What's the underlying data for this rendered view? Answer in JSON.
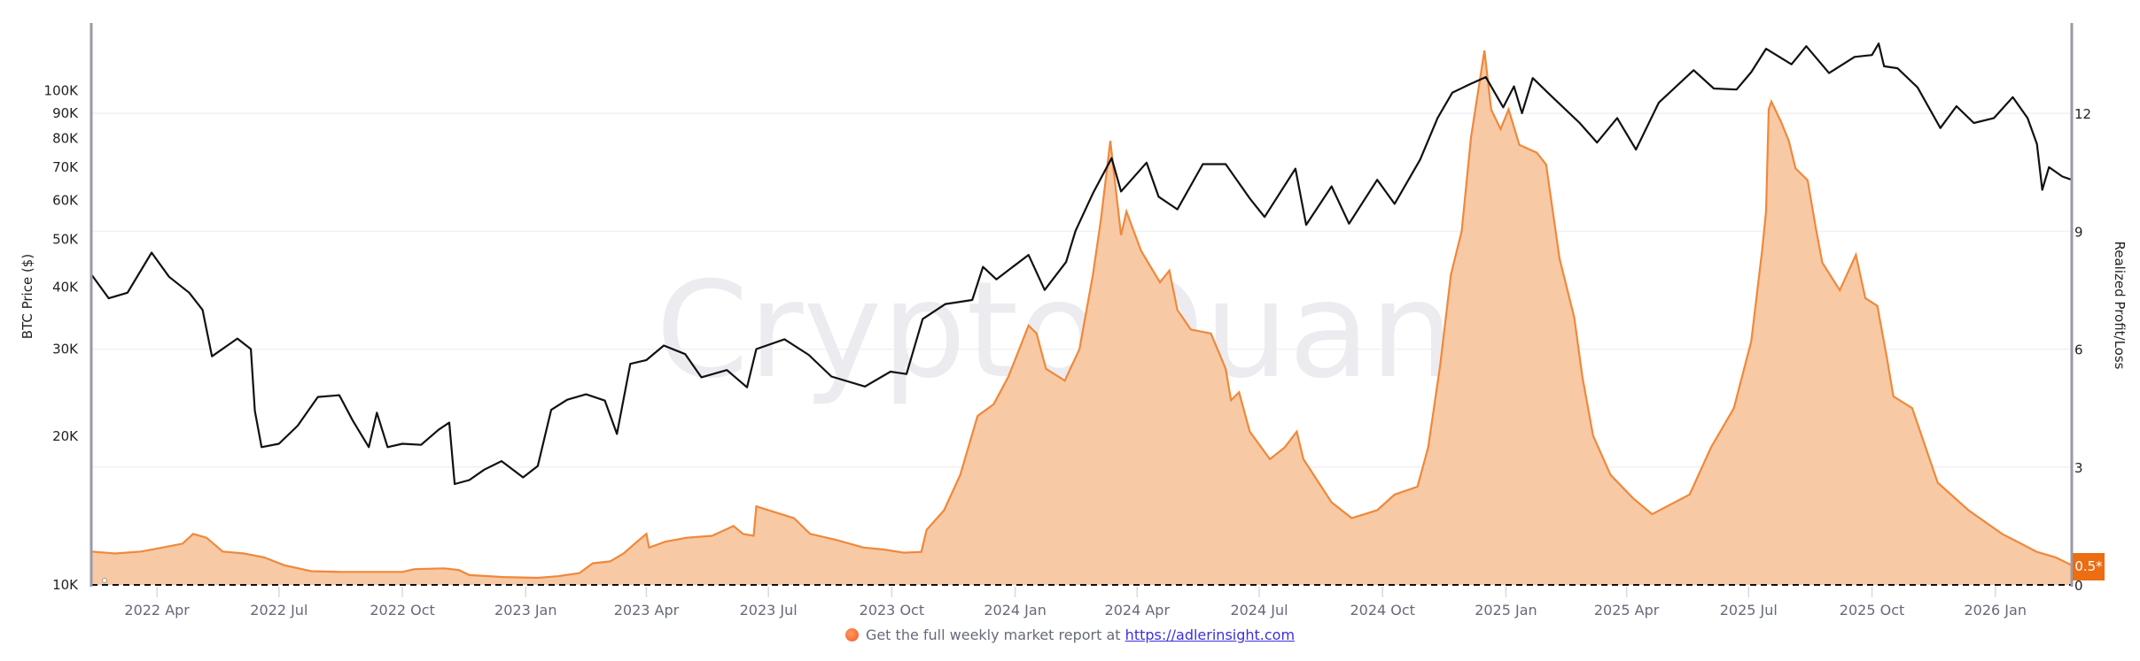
{
  "chart_data": {
    "type": "line",
    "watermark": "CryptoQuant",
    "y_left": {
      "label": "BTC Price ($)",
      "scale": "log",
      "range": [
        10000,
        137000
      ],
      "ticks": [
        10000,
        20000,
        30000,
        40000,
        50000,
        60000,
        70000,
        80000,
        90000,
        100000
      ],
      "tick_labels": [
        "10K",
        "20K",
        "30K",
        "40K",
        "50K",
        "60K",
        "70K",
        "80K",
        "90K",
        "100K"
      ]
    },
    "y_right": {
      "label": "Realized Profit/Loss",
      "scale": "linear",
      "range": [
        0,
        14.3
      ],
      "ticks": [
        0,
        3,
        6,
        9,
        12
      ],
      "tick_labels": [
        "0",
        "3",
        "6",
        "9",
        "12"
      ]
    },
    "x": {
      "range": [
        "2022-02-11",
        "2026-02-27"
      ],
      "ticks": [
        "2022-04-01",
        "2022-07-01",
        "2022-10-01",
        "2023-01-01",
        "2023-04-01",
        "2023-07-01",
        "2023-10-01",
        "2024-01-01",
        "2024-04-01",
        "2024-07-01",
        "2024-10-01",
        "2025-01-01",
        "2025-04-01",
        "2025-07-01",
        "2025-10-01",
        "2026-01-01"
      ],
      "tick_labels": [
        "2022 Apr",
        "2022 Jul",
        "2022 Oct",
        "2023 Jan",
        "2023 Apr",
        "2023 Jul",
        "2023 Oct",
        "2024 Jan",
        "2024 Apr",
        "2024 Jul",
        "2024 Oct",
        "2025 Jan",
        "2025 Apr",
        "2025 Jul",
        "2025 Oct",
        "2026 Jan"
      ]
    },
    "grid": true,
    "reference_line": {
      "axis": "right",
      "value": 0,
      "style": "dashed"
    },
    "last_value_badge": "0.5*",
    "colors": {
      "price": "#111111",
      "pl_line": "#f0883a",
      "pl_fill": "#f8c9a5",
      "badge": "#ec6d12",
      "axis": "#9a9aa6"
    },
    "series": [
      {
        "axis": "left",
        "kind": "line",
        "points": [
          [
            "2022-02-11",
            42500
          ],
          [
            "2022-02-24",
            38000
          ],
          [
            "2022-03-10",
            39000
          ],
          [
            "2022-03-28",
            47000
          ],
          [
            "2022-04-10",
            42000
          ],
          [
            "2022-04-25",
            39000
          ],
          [
            "2022-05-05",
            36000
          ],
          [
            "2022-05-12",
            29000
          ],
          [
            "2022-05-31",
            31500
          ],
          [
            "2022-06-10",
            30000
          ],
          [
            "2022-06-13",
            22500
          ],
          [
            "2022-06-18",
            19000
          ],
          [
            "2022-07-01",
            19300
          ],
          [
            "2022-07-15",
            21000
          ],
          [
            "2022-07-30",
            24000
          ],
          [
            "2022-08-15",
            24200
          ],
          [
            "2022-08-25",
            21500
          ],
          [
            "2022-09-06",
            19000
          ],
          [
            "2022-09-12",
            22300
          ],
          [
            "2022-09-20",
            19000
          ],
          [
            "2022-10-01",
            19300
          ],
          [
            "2022-10-15",
            19200
          ],
          [
            "2022-10-28",
            20600
          ],
          [
            "2022-11-05",
            21300
          ],
          [
            "2022-11-09",
            16000
          ],
          [
            "2022-11-20",
            16300
          ],
          [
            "2022-12-01",
            17100
          ],
          [
            "2022-12-14",
            17800
          ],
          [
            "2022-12-30",
            16500
          ],
          [
            "2023-01-10",
            17400
          ],
          [
            "2023-01-20",
            22600
          ],
          [
            "2023-02-01",
            23700
          ],
          [
            "2023-02-15",
            24300
          ],
          [
            "2023-03-01",
            23600
          ],
          [
            "2023-03-10",
            20200
          ],
          [
            "2023-03-20",
            28000
          ],
          [
            "2023-04-01",
            28500
          ],
          [
            "2023-04-14",
            30500
          ],
          [
            "2023-04-30",
            29300
          ],
          [
            "2023-05-12",
            26300
          ],
          [
            "2023-05-31",
            27200
          ],
          [
            "2023-06-15",
            25100
          ],
          [
            "2023-06-22",
            30000
          ],
          [
            "2023-07-13",
            31400
          ],
          [
            "2023-07-31",
            29200
          ],
          [
            "2023-08-17",
            26400
          ],
          [
            "2023-09-11",
            25200
          ],
          [
            "2023-09-30",
            27000
          ],
          [
            "2023-10-12",
            26700
          ],
          [
            "2023-10-24",
            34500
          ],
          [
            "2023-11-10",
            37000
          ],
          [
            "2023-11-30",
            37700
          ],
          [
            "2023-12-08",
            44000
          ],
          [
            "2023-12-18",
            41500
          ],
          [
            "2024-01-11",
            46500
          ],
          [
            "2024-01-23",
            39500
          ],
          [
            "2024-02-08",
            45000
          ],
          [
            "2024-02-15",
            52000
          ],
          [
            "2024-02-28",
            62000
          ],
          [
            "2024-03-13",
            73000
          ],
          [
            "2024-03-20",
            62500
          ],
          [
            "2024-04-08",
            71500
          ],
          [
            "2024-04-17",
            61000
          ],
          [
            "2024-05-01",
            57500
          ],
          [
            "2024-05-20",
            71000
          ],
          [
            "2024-06-06",
            71000
          ],
          [
            "2024-06-24",
            60500
          ],
          [
            "2024-07-05",
            55500
          ],
          [
            "2024-07-28",
            69500
          ],
          [
            "2024-08-05",
            53500
          ],
          [
            "2024-08-24",
            64000
          ],
          [
            "2024-09-06",
            53800
          ],
          [
            "2024-09-27",
            66000
          ],
          [
            "2024-10-10",
            59000
          ],
          [
            "2024-10-29",
            72500
          ],
          [
            "2024-11-11",
            88000
          ],
          [
            "2024-11-22",
            99000
          ],
          [
            "2024-12-05",
            103000
          ],
          [
            "2024-12-17",
            106500
          ],
          [
            "2024-12-30",
            92500
          ],
          [
            "2025-01-07",
            102000
          ],
          [
            "2025-01-13",
            90000
          ],
          [
            "2025-01-21",
            106000
          ],
          [
            "2025-02-03",
            98000
          ],
          [
            "2025-02-25",
            86000
          ],
          [
            "2025-03-10",
            78500
          ],
          [
            "2025-03-25",
            88000
          ],
          [
            "2025-04-08",
            76000
          ],
          [
            "2025-04-25",
            94500
          ],
          [
            "2025-05-21",
            110000
          ],
          [
            "2025-06-05",
            101000
          ],
          [
            "2025-06-22",
            100500
          ],
          [
            "2025-07-03",
            109000
          ],
          [
            "2025-07-14",
            121500
          ],
          [
            "2025-08-02",
            113000
          ],
          [
            "2025-08-13",
            123000
          ],
          [
            "2025-08-30",
            108500
          ],
          [
            "2025-09-18",
            117000
          ],
          [
            "2025-10-01",
            118000
          ],
          [
            "2025-10-06",
            124500
          ],
          [
            "2025-10-10",
            112000
          ],
          [
            "2025-10-20",
            111000
          ],
          [
            "2025-11-04",
            101500
          ],
          [
            "2025-11-21",
            84000
          ],
          [
            "2025-12-03",
            93000
          ],
          [
            "2025-12-16",
            86000
          ],
          [
            "2025-12-31",
            88000
          ],
          [
            "2026-01-14",
            97000
          ],
          [
            "2026-01-25",
            88000
          ],
          [
            "2026-02-01",
            78000
          ],
          [
            "2026-02-05",
            63000
          ],
          [
            "2026-02-10",
            70000
          ],
          [
            "2026-02-20",
            67000
          ],
          [
            "2026-02-27",
            66000
          ]
        ]
      },
      {
        "axis": "right",
        "kind": "area",
        "points": [
          [
            "2022-02-11",
            0.85
          ],
          [
            "2022-03-01",
            0.8
          ],
          [
            "2022-03-20",
            0.85
          ],
          [
            "2022-04-05",
            0.95
          ],
          [
            "2022-04-20",
            1.05
          ],
          [
            "2022-04-28",
            1.3
          ],
          [
            "2022-05-08",
            1.2
          ],
          [
            "2022-05-20",
            0.85
          ],
          [
            "2022-06-05",
            0.8
          ],
          [
            "2022-06-20",
            0.7
          ],
          [
            "2022-07-05",
            0.5
          ],
          [
            "2022-07-25",
            0.35
          ],
          [
            "2022-08-15",
            0.33
          ],
          [
            "2022-09-15",
            0.33
          ],
          [
            "2022-10-01",
            0.33
          ],
          [
            "2022-10-10",
            0.4
          ],
          [
            "2022-11-01",
            0.42
          ],
          [
            "2022-11-12",
            0.38
          ],
          [
            "2022-11-20",
            0.25
          ],
          [
            "2022-12-15",
            0.2
          ],
          [
            "2023-01-10",
            0.18
          ],
          [
            "2023-01-25",
            0.22
          ],
          [
            "2023-02-10",
            0.3
          ],
          [
            "2023-02-20",
            0.55
          ],
          [
            "2023-03-05",
            0.6
          ],
          [
            "2023-03-15",
            0.8
          ],
          [
            "2023-03-25",
            1.1
          ],
          [
            "2023-04-01",
            1.3
          ],
          [
            "2023-04-03",
            0.95
          ],
          [
            "2023-04-15",
            1.1
          ],
          [
            "2023-05-01",
            1.2
          ],
          [
            "2023-05-20",
            1.25
          ],
          [
            "2023-06-05",
            1.5
          ],
          [
            "2023-06-12",
            1.3
          ],
          [
            "2023-06-20",
            1.25
          ],
          [
            "2023-06-22",
            2.0
          ],
          [
            "2023-07-01",
            1.9
          ],
          [
            "2023-07-20",
            1.7
          ],
          [
            "2023-08-01",
            1.3
          ],
          [
            "2023-08-20",
            1.15
          ],
          [
            "2023-09-10",
            0.95
          ],
          [
            "2023-09-25",
            0.9
          ],
          [
            "2023-10-10",
            0.82
          ],
          [
            "2023-10-23",
            0.84
          ],
          [
            "2023-10-27",
            1.4
          ],
          [
            "2023-11-09",
            1.9
          ],
          [
            "2023-11-21",
            2.8
          ],
          [
            "2023-12-04",
            4.3
          ],
          [
            "2023-12-16",
            4.6
          ],
          [
            "2023-12-27",
            5.3
          ],
          [
            "2024-01-11",
            6.6
          ],
          [
            "2024-01-17",
            6.4
          ],
          [
            "2024-01-24",
            5.5
          ],
          [
            "2024-02-07",
            5.2
          ],
          [
            "2024-02-18",
            6.0
          ],
          [
            "2024-02-28",
            7.9
          ],
          [
            "2024-03-05",
            9.3
          ],
          [
            "2024-03-12",
            11.3
          ],
          [
            "2024-03-20",
            8.9
          ],
          [
            "2024-03-24",
            9.5
          ],
          [
            "2024-04-04",
            8.5
          ],
          [
            "2024-04-18",
            7.7
          ],
          [
            "2024-04-25",
            8.0
          ],
          [
            "2024-05-01",
            7.0
          ],
          [
            "2024-05-11",
            6.5
          ],
          [
            "2024-05-26",
            6.4
          ],
          [
            "2024-06-06",
            5.5
          ],
          [
            "2024-06-10",
            4.7
          ],
          [
            "2024-06-16",
            4.9
          ],
          [
            "2024-06-24",
            3.9
          ],
          [
            "2024-07-09",
            3.2
          ],
          [
            "2024-07-20",
            3.5
          ],
          [
            "2024-07-29",
            3.9
          ],
          [
            "2024-08-03",
            3.2
          ],
          [
            "2024-08-24",
            2.1
          ],
          [
            "2024-09-08",
            1.7
          ],
          [
            "2024-09-27",
            1.9
          ],
          [
            "2024-10-10",
            2.3
          ],
          [
            "2024-10-27",
            2.5
          ],
          [
            "2024-11-04",
            3.5
          ],
          [
            "2024-11-13",
            5.6
          ],
          [
            "2024-11-21",
            7.9
          ],
          [
            "2024-11-29",
            9.0
          ],
          [
            "2024-12-06",
            11.4
          ],
          [
            "2024-12-16",
            13.6
          ],
          [
            "2024-12-21",
            12.1
          ],
          [
            "2024-12-28",
            11.6
          ],
          [
            "2025-01-03",
            12.1
          ],
          [
            "2025-01-11",
            11.2
          ],
          [
            "2025-01-24",
            11.0
          ],
          [
            "2025-01-31",
            10.7
          ],
          [
            "2025-02-10",
            8.3
          ],
          [
            "2025-02-21",
            6.8
          ],
          [
            "2025-02-27",
            5.3
          ],
          [
            "2025-03-07",
            3.8
          ],
          [
            "2025-03-20",
            2.8
          ],
          [
            "2025-04-06",
            2.2
          ],
          [
            "2025-04-20",
            1.8
          ],
          [
            "2025-05-18",
            2.3
          ],
          [
            "2025-06-03",
            3.5
          ],
          [
            "2025-06-20",
            4.5
          ],
          [
            "2025-07-03",
            6.2
          ],
          [
            "2025-07-11",
            8.5
          ],
          [
            "2025-07-14",
            9.5
          ],
          [
            "2025-07-16",
            12.1
          ],
          [
            "2025-07-18",
            12.3
          ],
          [
            "2025-07-25",
            11.8
          ],
          [
            "2025-07-31",
            11.3
          ],
          [
            "2025-08-05",
            10.6
          ],
          [
            "2025-08-14",
            10.3
          ],
          [
            "2025-08-20",
            9.1
          ],
          [
            "2025-08-25",
            8.2
          ],
          [
            "2025-09-07",
            7.5
          ],
          [
            "2025-09-19",
            8.4
          ],
          [
            "2025-09-26",
            7.3
          ],
          [
            "2025-10-05",
            7.1
          ],
          [
            "2025-10-12",
            5.8
          ],
          [
            "2025-10-17",
            4.8
          ],
          [
            "2025-10-31",
            4.5
          ],
          [
            "2025-11-06",
            3.9
          ],
          [
            "2025-11-19",
            2.6
          ],
          [
            "2025-12-12",
            1.9
          ],
          [
            "2026-01-06",
            1.3
          ],
          [
            "2026-02-01",
            0.84
          ],
          [
            "2026-02-15",
            0.7
          ],
          [
            "2026-02-27",
            0.5
          ]
        ]
      }
    ]
  },
  "footer": {
    "text": "Get the full weekly market report at",
    "link_text": "https://adlerinsight.com"
  }
}
